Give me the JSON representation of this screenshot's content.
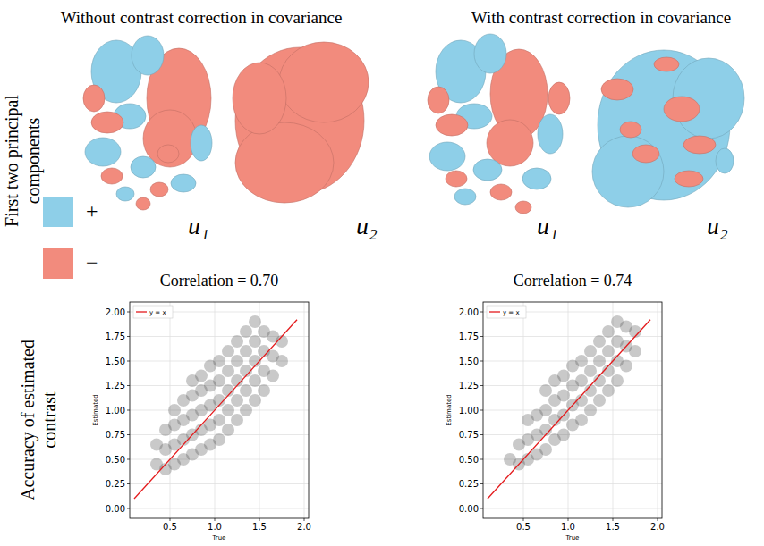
{
  "figure": {
    "column_titles": [
      "Without contrast correction in covariance",
      "With contrast correction in covariance"
    ],
    "row_labels": [
      "First two principal components",
      "Accuracy of estimated contrast"
    ],
    "sign_legend": [
      {
        "label": "+",
        "color": "#8ecfe8"
      },
      {
        "label": "−",
        "color": "#f28b7d"
      }
    ],
    "components": [
      [
        "u₁",
        "u₂"
      ],
      [
        "u₁",
        "u₂"
      ]
    ]
  },
  "chart_data": [
    {
      "type": "scatter",
      "title": "Correlation = 0.70",
      "x_label": "True",
      "y_label": "Estimated",
      "xlim": [
        0.05,
        2.05
      ],
      "ylim": [
        -0.1,
        2.1
      ],
      "xticks": [
        0.5,
        {
          "value": 1,
          "label": "1.0"
        },
        1.5,
        {
          "value": 2,
          "label": "2.0"
        }
      ],
      "yticks": [
        {
          "value": 0,
          "label": "0.00"
        },
        {
          "value": 0.25,
          "label": "0.25"
        },
        {
          "value": 0.5,
          "label": "0.50"
        },
        {
          "value": 0.75,
          "label": "0.75"
        },
        {
          "value": 1,
          "label": "1.00"
        },
        {
          "value": 1.25,
          "label": "1.25"
        },
        {
          "value": 1.5,
          "label": "1.50"
        },
        {
          "value": 1.75,
          "label": "1.75"
        },
        {
          "value": 2,
          "label": "2.00"
        }
      ],
      "grid": true,
      "legend": "upper left",
      "series": [
        {
          "type": "scatter",
          "color": "#4d4d4d",
          "x": [
            0.35,
            0.35,
            0.45,
            0.45,
            0.45,
            0.55,
            0.55,
            0.55,
            0.55,
            0.65,
            0.65,
            0.65,
            0.65,
            0.75,
            0.75,
            0.75,
            0.75,
            0.75,
            0.85,
            0.85,
            0.85,
            0.85,
            0.85,
            0.95,
            0.95,
            0.95,
            0.95,
            0.95,
            1.05,
            1.05,
            1.05,
            1.05,
            1.05,
            1.15,
            1.15,
            1.15,
            1.15,
            1.15,
            1.25,
            1.25,
            1.25,
            1.25,
            1.25,
            1.35,
            1.35,
            1.35,
            1.35,
            1.35,
            1.45,
            1.45,
            1.45,
            1.45,
            1.45,
            1.55,
            1.55,
            1.55,
            1.55,
            1.65,
            1.65,
            1.65,
            1.75,
            1.75
          ],
          "values": [
            0.45,
            0.65,
            0.4,
            0.6,
            0.8,
            0.45,
            0.65,
            0.85,
            1.0,
            0.5,
            0.7,
            0.9,
            1.1,
            0.55,
            0.75,
            0.95,
            1.15,
            1.3,
            0.6,
            0.8,
            1.0,
            1.2,
            1.35,
            0.65,
            0.85,
            1.05,
            1.25,
            1.45,
            0.7,
            0.9,
            1.1,
            1.3,
            1.5,
            0.8,
            1.0,
            1.2,
            1.4,
            1.6,
            0.9,
            1.1,
            1.3,
            1.5,
            1.7,
            1.0,
            1.2,
            1.4,
            1.6,
            1.8,
            1.1,
            1.3,
            1.5,
            1.7,
            1.9,
            1.2,
            1.4,
            1.6,
            1.8,
            1.35,
            1.55,
            1.75,
            1.5,
            1.7
          ]
        },
        {
          "name": "y = x",
          "type": "line",
          "color": "#e41a1c",
          "x": [
            0.1,
            1.92
          ],
          "values": [
            0.1,
            1.92
          ]
        }
      ]
    },
    {
      "type": "scatter",
      "title": "Correlation = 0.74",
      "x_label": "True",
      "y_label": "Estimated",
      "xlim": [
        0.05,
        2.05
      ],
      "ylim": [
        -0.1,
        2.1
      ],
      "xticks": [
        0.5,
        {
          "value": 1,
          "label": "1.0"
        },
        1.5,
        {
          "value": 2,
          "label": "2.0"
        }
      ],
      "yticks": [
        {
          "value": 0,
          "label": "0.00"
        },
        {
          "value": 0.25,
          "label": "0.25"
        },
        {
          "value": 0.5,
          "label": "0.50"
        },
        {
          "value": 0.75,
          "label": "0.75"
        },
        {
          "value": 1,
          "label": "1.00"
        },
        {
          "value": 1.25,
          "label": "1.25"
        },
        {
          "value": 1.5,
          "label": "1.50"
        },
        {
          "value": 1.75,
          "label": "1.75"
        },
        {
          "value": 2,
          "label": "2.00"
        }
      ],
      "grid": true,
      "legend": "upper left",
      "series": [
        {
          "type": "scatter",
          "color": "#4d4d4d",
          "x": [
            0.35,
            0.45,
            0.45,
            0.55,
            0.55,
            0.55,
            0.65,
            0.65,
            0.65,
            0.75,
            0.75,
            0.75,
            0.75,
            0.85,
            0.85,
            0.85,
            0.85,
            0.95,
            0.95,
            0.95,
            0.95,
            1.05,
            1.05,
            1.05,
            1.05,
            1.15,
            1.15,
            1.15,
            1.15,
            1.25,
            1.25,
            1.25,
            1.25,
            1.35,
            1.35,
            1.35,
            1.35,
            1.45,
            1.45,
            1.45,
            1.45,
            1.55,
            1.55,
            1.55,
            1.55,
            1.65,
            1.65,
            1.65,
            1.75,
            1.75
          ],
          "values": [
            0.5,
            0.45,
            0.65,
            0.5,
            0.7,
            0.9,
            0.55,
            0.75,
            0.95,
            0.6,
            0.8,
            1.0,
            1.2,
            0.7,
            0.9,
            1.1,
            1.3,
            0.75,
            0.95,
            1.15,
            1.35,
            0.85,
            1.05,
            1.25,
            1.45,
            0.9,
            1.1,
            1.3,
            1.5,
            1.0,
            1.2,
            1.4,
            1.6,
            1.1,
            1.3,
            1.5,
            1.7,
            1.2,
            1.4,
            1.6,
            1.8,
            1.3,
            1.5,
            1.7,
            1.9,
            1.45,
            1.65,
            1.85,
            1.6,
            1.8
          ]
        },
        {
          "name": "y = x",
          "type": "line",
          "color": "#e41a1c",
          "x": [
            0.1,
            1.92
          ],
          "values": [
            0.1,
            1.92
          ]
        }
      ]
    }
  ]
}
